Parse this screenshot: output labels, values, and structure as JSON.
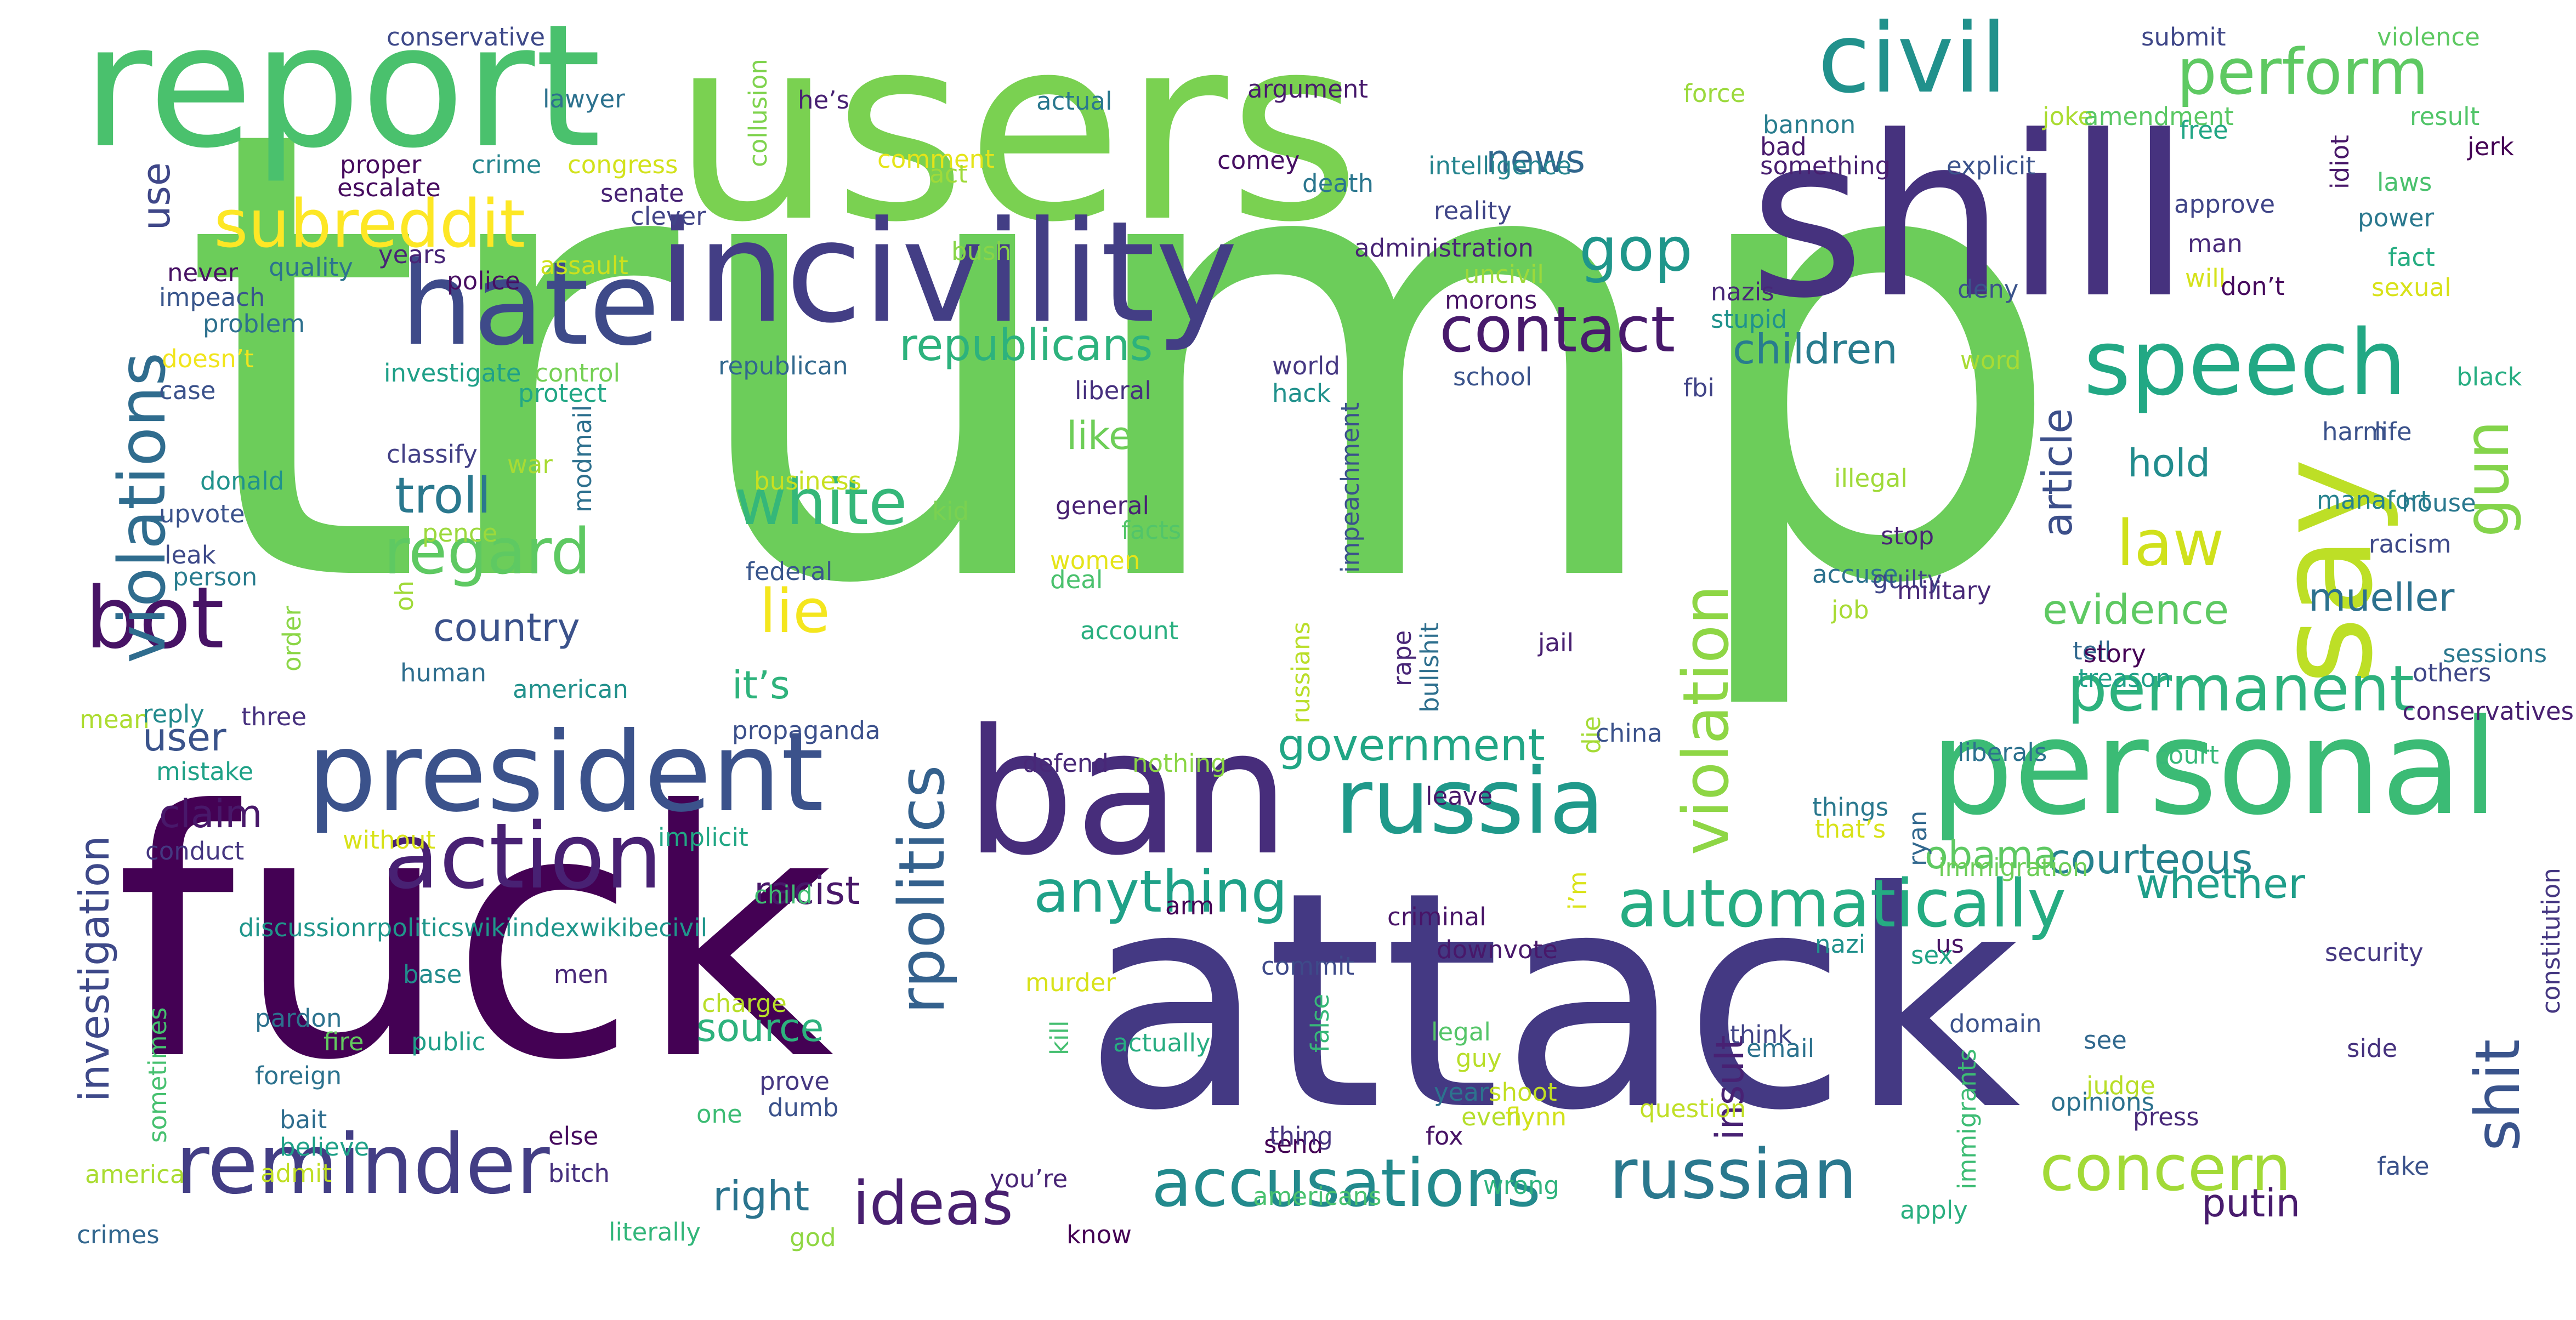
{
  "wordcloud": {
    "words": [
      {
        "text": "trump",
        "color": "#6ccd5a"
      },
      {
        "text": "fuck",
        "color": "#440154"
      },
      {
        "text": "attack",
        "color": "#443983"
      },
      {
        "text": "users",
        "color": "#7ad151"
      },
      {
        "text": "shill",
        "color": "#46327e"
      },
      {
        "text": "report",
        "color": "#4ac16d"
      },
      {
        "text": "incivility",
        "color": "#433e85"
      },
      {
        "text": "ban",
        "color": "#472d7b"
      },
      {
        "text": "personal",
        "color": "#3bbb75"
      },
      {
        "text": "hate",
        "color": "#3e4a89"
      },
      {
        "text": "president",
        "color": "#3b528b"
      },
      {
        "text": "civil",
        "color": "#21918c"
      },
      {
        "text": "speech",
        "color": "#22a884"
      },
      {
        "text": "say",
        "color": "#bddf26"
      },
      {
        "text": "russia",
        "color": "#1f998a"
      },
      {
        "text": "action",
        "color": "#482173"
      },
      {
        "text": "reminder",
        "color": "#433e85"
      },
      {
        "text": "accusations",
        "color": "#238a8d"
      },
      {
        "text": "russian",
        "color": "#2a788e"
      },
      {
        "text": "automatically",
        "color": "#25ac82"
      },
      {
        "text": "subreddit",
        "color": "#fde725"
      },
      {
        "text": "perform",
        "color": "#5ec962"
      },
      {
        "text": "contact",
        "color": "#481a6c"
      },
      {
        "text": "bot",
        "color": "#471365"
      },
      {
        "text": "anything",
        "color": "#1fa188"
      },
      {
        "text": "ideas",
        "color": "#481f70"
      },
      {
        "text": "concern",
        "color": "#a2da37"
      },
      {
        "text": "violations",
        "color": "#2f6c8e"
      },
      {
        "text": "violation",
        "color": "#8ed645"
      },
      {
        "text": "rpolitics",
        "color": "#34618d"
      },
      {
        "text": "white",
        "color": "#35b779"
      },
      {
        "text": "regard",
        "color": "#5ec962"
      },
      {
        "text": "permanent",
        "color": "#2db27d"
      },
      {
        "text": "shit",
        "color": "#3a548c"
      },
      {
        "text": "gun",
        "color": "#84d44b"
      },
      {
        "text": "law",
        "color": "#d0e11c"
      },
      {
        "text": "gop",
        "color": "#1f968b"
      },
      {
        "text": "lie",
        "color": "#f4e61e"
      },
      {
        "text": "republicans",
        "color": "#2db27d"
      },
      {
        "text": "government",
        "color": "#21a685"
      },
      {
        "text": "troll",
        "color": "#2a788e"
      },
      {
        "text": "investigation",
        "color": "#3e4989"
      },
      {
        "text": "children",
        "color": "#287c8e"
      },
      {
        "text": "article",
        "color": "#3c4f8a"
      },
      {
        "text": "courteous",
        "color": "#26828e"
      },
      {
        "text": "evidence",
        "color": "#5ec962"
      },
      {
        "text": "mueller",
        "color": "#2c718e"
      },
      {
        "text": "whether",
        "color": "#1f9e89"
      },
      {
        "text": "putin",
        "color": "#481b6d"
      },
      {
        "text": "insult",
        "color": "#482173"
      },
      {
        "text": "country",
        "color": "#3b528b"
      },
      {
        "text": "it’s",
        "color": "#2eb37c"
      },
      {
        "text": "right",
        "color": "#2b748e"
      },
      {
        "text": "source",
        "color": "#2db27d"
      },
      {
        "text": "racist",
        "color": "#481769"
      },
      {
        "text": "obama",
        "color": "#5ec962"
      },
      {
        "text": "hold",
        "color": "#228c8d"
      },
      {
        "text": "news",
        "color": "#31678e"
      },
      {
        "text": "like",
        "color": "#6ece58"
      },
      {
        "text": "user",
        "color": "#3a538b"
      },
      {
        "text": "claim",
        "color": "#48186a"
      },
      {
        "text": "use",
        "color": "#3f4788"
      },
      {
        "text": "conservative",
        "color": "#3e4989"
      },
      {
        "text": "lawyer",
        "color": "#2c718e"
      },
      {
        "text": "proper",
        "color": "#460a5d"
      },
      {
        "text": "crime",
        "color": "#25858e"
      },
      {
        "text": "congress",
        "color": "#d2e21b"
      },
      {
        "text": "escalate",
        "color": "#460b5e"
      },
      {
        "text": "senate",
        "color": "#482475"
      },
      {
        "text": "clever",
        "color": "#414487"
      },
      {
        "text": "never",
        "color": "#471164"
      },
      {
        "text": "quality",
        "color": "#2c738e"
      },
      {
        "text": "years",
        "color": "#482576"
      },
      {
        "text": "assault",
        "color": "#cde11d"
      },
      {
        "text": "police",
        "color": "#470e61"
      },
      {
        "text": "impeach",
        "color": "#39568c"
      },
      {
        "text": "problem",
        "color": "#2d708e"
      },
      {
        "text": "doesn’t",
        "color": "#f1e51d"
      },
      {
        "text": "investigate",
        "color": "#1fa088"
      },
      {
        "text": "control",
        "color": "#75d054"
      },
      {
        "text": "case",
        "color": "#3b528b"
      },
      {
        "text": "protect",
        "color": "#22a785"
      },
      {
        "text": "classify",
        "color": "#423f85"
      },
      {
        "text": "war",
        "color": "#a8db34"
      },
      {
        "text": "donald",
        "color": "#20928c"
      },
      {
        "text": "modmail",
        "color": "#2d708e"
      },
      {
        "text": "upvote",
        "color": "#3b528b"
      },
      {
        "text": "pence",
        "color": "#9bd93c"
      },
      {
        "text": "leak",
        "color": "#3e4a89"
      },
      {
        "text": "person",
        "color": "#287c8e"
      },
      {
        "text": "oh",
        "color": "#a0da39"
      },
      {
        "text": "human",
        "color": "#2e6e8e"
      },
      {
        "text": "order",
        "color": "#8bd646"
      },
      {
        "text": "american",
        "color": "#21918c"
      },
      {
        "text": "mean",
        "color": "#addc30"
      },
      {
        "text": "reply",
        "color": "#238a8d"
      },
      {
        "text": "three",
        "color": "#46307e"
      },
      {
        "text": "mistake",
        "color": "#1fa287"
      },
      {
        "text": "without",
        "color": "#d8e219"
      },
      {
        "text": "conduct",
        "color": "#453781"
      },
      {
        "text": "implicit",
        "color": "#22a785"
      },
      {
        "text": "discussionrpoliticswikiindexwikibecivil",
        "color": "#1f968b"
      },
      {
        "text": "child",
        "color": "#40bd72"
      },
      {
        "text": "base",
        "color": "#228c8d"
      },
      {
        "text": "men",
        "color": "#482878"
      },
      {
        "text": "charge",
        "color": "#b8de29"
      },
      {
        "text": "pardon",
        "color": "#2c728e"
      },
      {
        "text": "fire",
        "color": "#63cb5f"
      },
      {
        "text": "public",
        "color": "#1f9f88"
      },
      {
        "text": "foreign",
        "color": "#2c728e"
      },
      {
        "text": "else",
        "color": "#460b5e"
      },
      {
        "text": "sometimes",
        "color": "#46c06f"
      },
      {
        "text": "bait",
        "color": "#2e6d8e"
      },
      {
        "text": "believe",
        "color": "#1fa188"
      },
      {
        "text": "america",
        "color": "#aadc32"
      },
      {
        "text": "admit",
        "color": "#c0df25"
      },
      {
        "text": "bitch",
        "color": "#46307e"
      },
      {
        "text": "crimes",
        "color": "#31668e"
      },
      {
        "text": "literally",
        "color": "#32b67a"
      },
      {
        "text": "one",
        "color": "#3dbc74"
      },
      {
        "text": "prove",
        "color": "#453882"
      },
      {
        "text": "dumb",
        "color": "#3b528b"
      },
      {
        "text": "you’re",
        "color": "#482475"
      },
      {
        "text": "god",
        "color": "#90d743"
      },
      {
        "text": "know",
        "color": "#440154"
      },
      {
        "text": "he’s",
        "color": "#482173"
      },
      {
        "text": "collusion",
        "color": "#7fd34e"
      },
      {
        "text": "comment",
        "color": "#e5e419"
      },
      {
        "text": "act",
        "color": "#9fda3a"
      },
      {
        "text": "actual",
        "color": "#2a788e"
      },
      {
        "text": "bush",
        "color": "#88d548"
      },
      {
        "text": "republican",
        "color": "#31688e"
      },
      {
        "text": "liberal",
        "color": "#46307e"
      },
      {
        "text": "business",
        "color": "#c8e020"
      },
      {
        "text": "kid",
        "color": "#7ad151"
      },
      {
        "text": "general",
        "color": "#482173"
      },
      {
        "text": "facts",
        "color": "#52c569"
      },
      {
        "text": "women",
        "color": "#e5e419"
      },
      {
        "text": "deal",
        "color": "#4ac16d"
      },
      {
        "text": "federal",
        "color": "#39568c"
      },
      {
        "text": "account",
        "color": "#29af7f"
      },
      {
        "text": "propaganda",
        "color": "#3c508b"
      },
      {
        "text": "defend",
        "color": "#482878"
      },
      {
        "text": "nothing",
        "color": "#8bd646"
      },
      {
        "text": "argument",
        "color": "#481b6d"
      },
      {
        "text": "force",
        "color": "#9bd93c"
      },
      {
        "text": "comey",
        "color": "#471063"
      },
      {
        "text": "intelligence",
        "color": "#25848e"
      },
      {
        "text": "death",
        "color": "#2a768e"
      },
      {
        "text": "reality",
        "color": "#404688"
      },
      {
        "text": "administration",
        "color": "#482475"
      },
      {
        "text": "uncivil",
        "color": "#9dd93b"
      },
      {
        "text": "morons",
        "color": "#471365"
      },
      {
        "text": "world",
        "color": "#453882"
      },
      {
        "text": "school",
        "color": "#3a538b"
      },
      {
        "text": "hack",
        "color": "#21918c"
      },
      {
        "text": "impeachment",
        "color": "#3b528b"
      },
      {
        "text": "russians",
        "color": "#bade28"
      },
      {
        "text": "rape",
        "color": "#482677"
      },
      {
        "text": "bullshit",
        "color": "#2e6f8e"
      },
      {
        "text": "jail",
        "color": "#482071"
      },
      {
        "text": "die",
        "color": "#a5db36"
      },
      {
        "text": "china",
        "color": "#3b528b"
      },
      {
        "text": "leave",
        "color": "#48186a"
      },
      {
        "text": "criminal",
        "color": "#481467"
      },
      {
        "text": "i’m",
        "color": "#dae319"
      },
      {
        "text": "arm",
        "color": "#440154"
      },
      {
        "text": "commit",
        "color": "#3e4a89"
      },
      {
        "text": "downvote",
        "color": "#48186a"
      },
      {
        "text": "murder",
        "color": "#d8e219"
      },
      {
        "text": "kill",
        "color": "#44bf70"
      },
      {
        "text": "actually",
        "color": "#27ad81"
      },
      {
        "text": "false",
        "color": "#37b878"
      },
      {
        "text": "legal",
        "color": "#54c568"
      },
      {
        "text": "guy",
        "color": "#b8de29"
      },
      {
        "text": "year",
        "color": "#2c738e"
      },
      {
        "text": "shoot",
        "color": "#c2df23"
      },
      {
        "text": "even",
        "color": "#b5de2b"
      },
      {
        "text": "flynn",
        "color": "#d2e21b"
      },
      {
        "text": "send",
        "color": "#440154"
      },
      {
        "text": "fox",
        "color": "#471365"
      },
      {
        "text": "thing",
        "color": "#46327e"
      },
      {
        "text": "wrong",
        "color": "#2eb37c"
      },
      {
        "text": "americans",
        "color": "#48c16e"
      },
      {
        "text": "submit",
        "color": "#3f4788"
      },
      {
        "text": "violence",
        "color": "#5ec962"
      },
      {
        "text": "joke",
        "color": "#aadc32"
      },
      {
        "text": "amendment",
        "color": "#5ac864"
      },
      {
        "text": "result",
        "color": "#52c569"
      },
      {
        "text": "jerk",
        "color": "#440154"
      },
      {
        "text": "bad",
        "color": "#481a6c"
      },
      {
        "text": "bannon",
        "color": "#287d8e"
      },
      {
        "text": "free",
        "color": "#21a685"
      },
      {
        "text": "something",
        "color": "#481f70"
      },
      {
        "text": "explicit",
        "color": "#3b528b"
      },
      {
        "text": "idiot",
        "color": "#481769"
      },
      {
        "text": "laws",
        "color": "#4ac16d"
      },
      {
        "text": "approve",
        "color": "#404588"
      },
      {
        "text": "power",
        "color": "#2a788e"
      },
      {
        "text": "man",
        "color": "#482979"
      },
      {
        "text": "fact",
        "color": "#26ad81"
      },
      {
        "text": "will",
        "color": "#d5e21a"
      },
      {
        "text": "nazis",
        "color": "#482878"
      },
      {
        "text": "don’t",
        "color": "#460a5d"
      },
      {
        "text": "sexual",
        "color": "#d8e219"
      },
      {
        "text": "deny",
        "color": "#3a538b"
      },
      {
        "text": "stupid",
        "color": "#20928c"
      },
      {
        "text": "word",
        "color": "#a8db34"
      },
      {
        "text": "black",
        "color": "#26ad81"
      },
      {
        "text": "fbi",
        "color": "#414487"
      },
      {
        "text": "harm",
        "color": "#3b528b"
      },
      {
        "text": "manafort",
        "color": "#26828e"
      },
      {
        "text": "life",
        "color": "#3b528b"
      },
      {
        "text": "illegal",
        "color": "#a0da39"
      },
      {
        "text": "house",
        "color": "#2a788e"
      },
      {
        "text": "stop",
        "color": "#482475"
      },
      {
        "text": "racism",
        "color": "#3e4989"
      },
      {
        "text": "accuse",
        "color": "#2c718e"
      },
      {
        "text": "guilty",
        "color": "#404588"
      },
      {
        "text": "military",
        "color": "#482878"
      },
      {
        "text": "job",
        "color": "#a8db34"
      },
      {
        "text": "tell",
        "color": "#31688e"
      },
      {
        "text": "story",
        "color": "#440154"
      },
      {
        "text": "sessions",
        "color": "#2a788e"
      },
      {
        "text": "others",
        "color": "#3f4788"
      },
      {
        "text": "treason",
        "color": "#1fa088"
      },
      {
        "text": "conservatives",
        "color": "#481f70"
      },
      {
        "text": "liberals",
        "color": "#2c718e"
      },
      {
        "text": "court",
        "color": "#37b878"
      },
      {
        "text": "ryan",
        "color": "#31688e"
      },
      {
        "text": "things",
        "color": "#2a788e"
      },
      {
        "text": "that’s",
        "color": "#d8e219"
      },
      {
        "text": "immigration",
        "color": "#6ece58"
      },
      {
        "text": "security",
        "color": "#453882"
      },
      {
        "text": "constitution",
        "color": "#453781"
      },
      {
        "text": "us",
        "color": "#471365"
      },
      {
        "text": "nazi",
        "color": "#21918c"
      },
      {
        "text": "sex",
        "color": "#20a386"
      },
      {
        "text": "think",
        "color": "#414487"
      },
      {
        "text": "email",
        "color": "#2c728e"
      },
      {
        "text": "domain",
        "color": "#3b528b"
      },
      {
        "text": "see",
        "color": "#31688e"
      },
      {
        "text": "side",
        "color": "#46327e"
      },
      {
        "text": "judge",
        "color": "#b8de29"
      },
      {
        "text": "opinions",
        "color": "#2c718e"
      },
      {
        "text": "press",
        "color": "#482979"
      },
      {
        "text": "question",
        "color": "#c0df25"
      },
      {
        "text": "immigrants",
        "color": "#3dbc74"
      },
      {
        "text": "fake",
        "color": "#3b528b"
      },
      {
        "text": "apply",
        "color": "#29af7f"
      }
    ]
  }
}
